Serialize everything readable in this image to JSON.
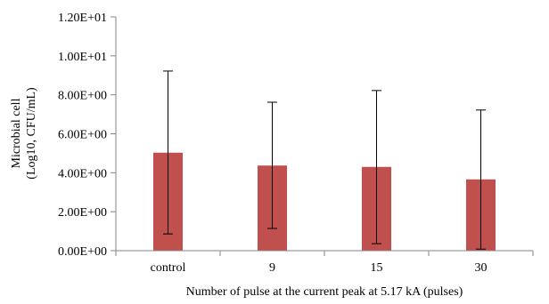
{
  "chart_data": {
    "type": "bar",
    "title": "",
    "xlabel": "Number of pulse at the current peak at 5.17 kA (pulses)",
    "ylabel_lines": [
      "Microbial cell",
      "(Log10, CFU/mL)"
    ],
    "categories": [
      "control",
      "9",
      "15",
      "30"
    ],
    "values": [
      5.03,
      4.37,
      4.3,
      3.66
    ],
    "error_upper": [
      9.22,
      7.62,
      8.22,
      7.22
    ],
    "error_lower": [
      0.86,
      1.14,
      0.36,
      0.08
    ],
    "ylim": [
      0,
      12
    ],
    "yticks": [
      {
        "value": 0,
        "label": "0.00E+00"
      },
      {
        "value": 2,
        "label": "2.00E+00"
      },
      {
        "value": 4,
        "label": "4.00E+00"
      },
      {
        "value": 6,
        "label": "6.00E+00"
      },
      {
        "value": 8,
        "label": "8.00E+00"
      },
      {
        "value": 10,
        "label": "1.00E+01"
      },
      {
        "value": 12,
        "label": "1.20E+01"
      }
    ],
    "grid": false,
    "legend": "none",
    "bar_color": "#c0504d",
    "axis_color": "#868686",
    "error_bar_color": "#000000"
  }
}
